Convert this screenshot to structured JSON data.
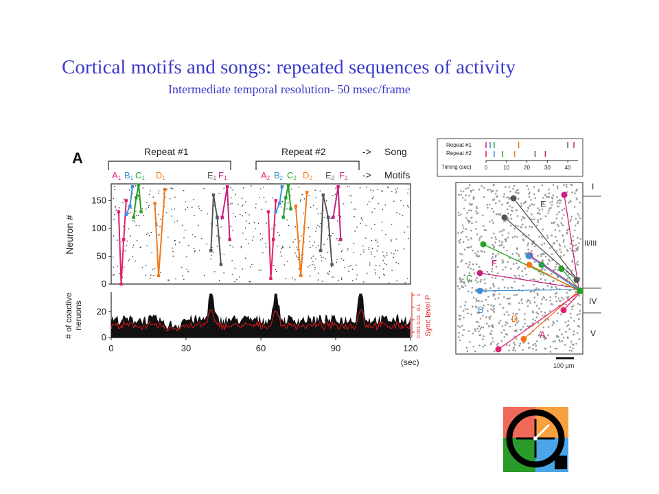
{
  "slide": {
    "title": "Cortical motifs and songs: repeated sequences of activity",
    "subtitle": "Intermediate temporal resolution- 50 msec/frame"
  },
  "colors": {
    "title": "#3a3ac8",
    "A": "#e0206e",
    "B": "#3a8fd8",
    "C": "#28a028",
    "D": "#f07818",
    "E": "#555555",
    "F": "#c8207e",
    "sync": "#e01818",
    "logo_red": "#f06a5a",
    "logo_orange": "#f7a040",
    "logo_green": "#2a9a2a",
    "logo_blue": "#4aa6e8"
  },
  "panel_label": "A",
  "song_row": {
    "repeat1": "Repeat #1",
    "repeat2": "Repeat #2",
    "arrow": "->",
    "song": "Song",
    "motifs": "Motifs"
  },
  "motif_labels_1": [
    {
      "letter": "A",
      "sub": "1",
      "color": "A"
    },
    {
      "letter": "B",
      "sub": "1",
      "color": "B"
    },
    {
      "letter": "C",
      "sub": "1",
      "color": "C"
    },
    {
      "letter": "D",
      "sub": "1",
      "color": "D"
    },
    {
      "letter": "E",
      "sub": "1",
      "color": "E"
    },
    {
      "letter": "F",
      "sub": "1",
      "color": "F"
    }
  ],
  "motif_labels_2": [
    {
      "letter": "A",
      "sub": "2",
      "color": "A"
    },
    {
      "letter": "B",
      "sub": "2",
      "color": "B"
    },
    {
      "letter": "C",
      "sub": "2",
      "color": "C"
    },
    {
      "letter": "D",
      "sub": "2",
      "color": "D"
    },
    {
      "letter": "E",
      "sub": "2",
      "color": "E"
    },
    {
      "letter": "F",
      "sub": "2",
      "color": "F"
    }
  ],
  "raster": {
    "ylabel": "Neuron #",
    "yticks": [
      "0",
      "50",
      "100",
      "150"
    ]
  },
  "coactive": {
    "ylabel_line1": "# of coactive",
    "ylabel_line2": "neruons",
    "yticks": [
      "0",
      "20"
    ],
    "xticks": [
      "0",
      "30",
      "60",
      "90",
      "120"
    ],
    "xunit": "(sec)",
    "sync_label": "Sync level P",
    "sync_ticks": [
      "1",
      "0.1",
      "0.01",
      "0.001"
    ]
  },
  "timing_inset": {
    "row1": "Repeat #1",
    "row2": "Repeat #2",
    "axis_label": "Timing (sec)",
    "ticks": [
      "0",
      "10",
      "20",
      "30",
      "40"
    ]
  },
  "map": {
    "layers": [
      "I",
      "II/III",
      "IV",
      "V"
    ],
    "letters": [
      "E",
      "F",
      "C",
      "B",
      "D",
      "A"
    ],
    "scale": "100 µm"
  },
  "chart_data": {
    "type": "scatter",
    "title": "",
    "xlabel": "(sec)",
    "ylabel": "Neuron #",
    "xlim": [
      0,
      120
    ],
    "ylim": [
      0,
      180
    ],
    "series": [
      {
        "name": "A1",
        "x": [
          3.0,
          4.0,
          5.0,
          6.0
        ],
        "y": [
          130,
          0,
          80,
          150
        ]
      },
      {
        "name": "B1",
        "x": [
          6.0,
          7.5,
          8.5
        ],
        "y": [
          125,
          140,
          175
        ]
      },
      {
        "name": "C1",
        "x": [
          9.0,
          10.0,
          11.0,
          12.0
        ],
        "y": [
          120,
          155,
          178,
          130
        ]
      },
      {
        "name": "D1",
        "x": [
          17.5,
          19.0,
          21.5
        ],
        "y": [
          145,
          15,
          170
        ]
      },
      {
        "name": "E1",
        "x": [
          40.0,
          41.0,
          42.5,
          44.0
        ],
        "y": [
          60,
          160,
          120,
          35
        ]
      },
      {
        "name": "F1",
        "x": [
          44.5,
          46.5,
          47.5
        ],
        "y": [
          120,
          175,
          80
        ]
      },
      {
        "name": "A2",
        "x": [
          63.0,
          64.0,
          65.0,
          66.0
        ],
        "y": [
          130,
          10,
          80,
          150
        ]
      },
      {
        "name": "B2",
        "x": [
          66.0,
          67.5,
          68.5
        ],
        "y": [
          130,
          145,
          175
        ]
      },
      {
        "name": "C2",
        "x": [
          69.0,
          70.0,
          71.0,
          72.0
        ],
        "y": [
          120,
          155,
          178,
          135
        ]
      },
      {
        "name": "D2",
        "x": [
          74.0,
          76.0,
          78.5
        ],
        "y": [
          140,
          15,
          165
        ]
      },
      {
        "name": "E2",
        "x": [
          84.0,
          85.0,
          87.0,
          88.5
        ],
        "y": [
          60,
          160,
          120,
          35
        ]
      },
      {
        "name": "F2",
        "x": [
          89.0,
          91.0,
          92.0
        ],
        "y": [
          120,
          175,
          80
        ]
      }
    ],
    "coactive_count": {
      "xlim": [
        0,
        120
      ],
      "ylim": [
        0,
        35
      ],
      "peaks": [
        {
          "x": 40,
          "y": 28
        },
        {
          "x": 66,
          "y": 30
        },
        {
          "x": 100,
          "y": 30
        }
      ]
    },
    "timing": {
      "xlim": [
        0,
        45
      ],
      "repeat1": [
        {
          "t": 0,
          "c": "A"
        },
        {
          "t": 2,
          "c": "B"
        },
        {
          "t": 4,
          "c": "C"
        },
        {
          "t": 16,
          "c": "D"
        },
        {
          "t": 40,
          "c": "E"
        },
        {
          "t": 43,
          "c": "F"
        }
      ],
      "repeat2": [
        {
          "t": 0,
          "c": "A"
        },
        {
          "t": 4,
          "c": "B"
        },
        {
          "t": 8,
          "c": "C"
        },
        {
          "t": 14,
          "c": "D"
        },
        {
          "t": 24,
          "c": "E"
        },
        {
          "t": 29,
          "c": "F"
        }
      ]
    }
  }
}
